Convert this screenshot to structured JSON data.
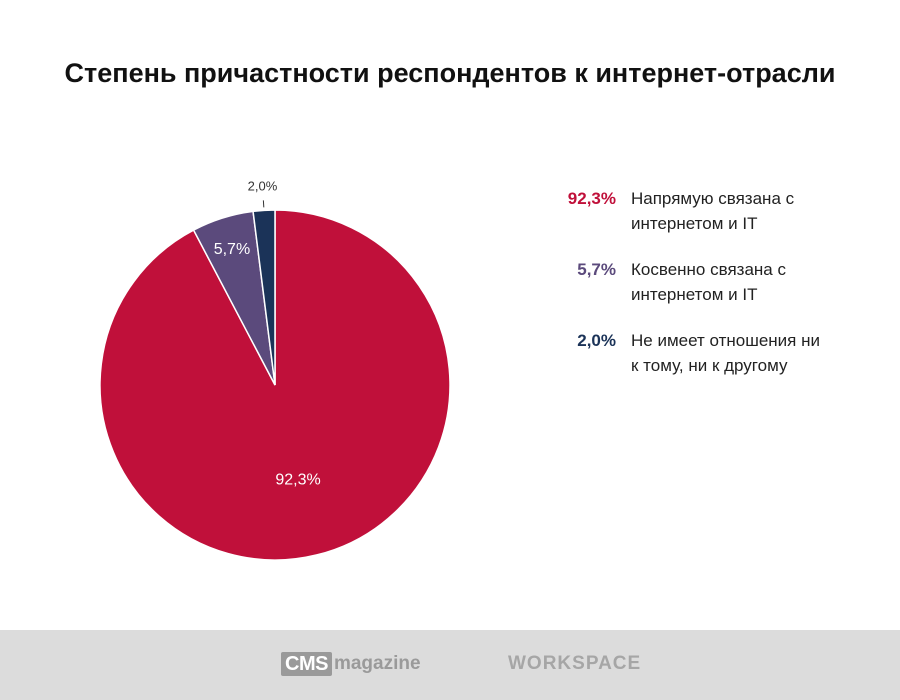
{
  "title": "Степень причастности респондентов к интернет-отрасли",
  "chart_data": {
    "type": "pie",
    "title": "Степень причастности респондентов к интернет-отрасли",
    "series": [
      {
        "label": "Напрямую связана с интернетом и IT",
        "value": 92.3,
        "value_label": "92,3%",
        "color": "#c0103a"
      },
      {
        "label": "Косвенно связана с интернетом и IT",
        "value": 5.7,
        "value_label": "5,7%",
        "color": "#5b4a7c"
      },
      {
        "label": "Не имеет отношения ни к тому, ни к другому",
        "value": 2.0,
        "value_label": "2,0%",
        "color": "#1b3358"
      }
    ],
    "legend_position": "right"
  },
  "legend": [
    {
      "value": "92,3%",
      "line1": "Напрямую связана с",
      "line2": "интернетом и IT",
      "color": "#c0103a"
    },
    {
      "value": "5,7%",
      "line1": "Косвенно связана с",
      "line2": "интернетом и IT",
      "color": "#5b4a7c"
    },
    {
      "value": "2,0%",
      "line1": "Не имеет отношения ни",
      "line2": "к тому, ни к другому",
      "color": "#1b3358"
    }
  ],
  "footer": {
    "logo1_box": "CMS",
    "logo1_text": "magazine",
    "logo2": "WORKSPACE"
  }
}
